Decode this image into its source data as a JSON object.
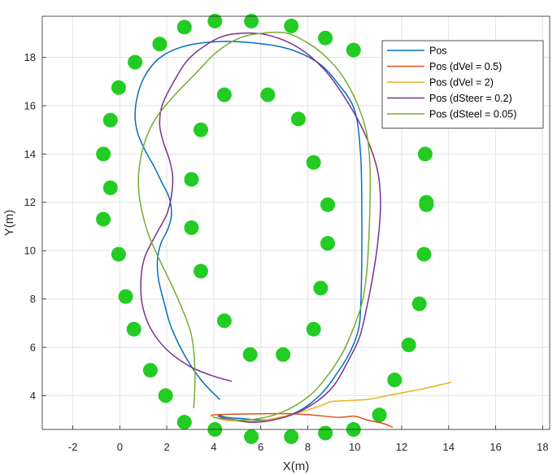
{
  "chart_data": {
    "type": "line",
    "xlabel": "X(m)",
    "ylabel": "Y(m)",
    "xlim": [
      -3.3,
      18.3
    ],
    "ylim": [
      2.6,
      19.7
    ],
    "xticks": [
      -2,
      0,
      2,
      4,
      6,
      8,
      10,
      12,
      14,
      16,
      18
    ],
    "yticks": [
      4,
      6,
      8,
      10,
      12,
      14,
      16,
      18
    ],
    "grid": true,
    "legend_position": "top-right",
    "cones": {
      "color": "#22cc22",
      "x": [
        2.75,
        4.05,
        5.6,
        7.3,
        8.75,
        9.95,
        1.7,
        0.65,
        -0.05,
        -0.4,
        -0.7,
        -0.4,
        -0.7,
        -0.05,
        0.25,
        0.6,
        1.3,
        1.95,
        2.75,
        4.05,
        5.6,
        7.3,
        8.75,
        9.95,
        11.05,
        11.7,
        12.3,
        12.75,
        12.95,
        13.05,
        13.0,
        13.05,
        4.45,
        6.3,
        7.6,
        8.25,
        8.85,
        8.85,
        8.55,
        8.25,
        6.95,
        5.55,
        4.45,
        3.45,
        3.05,
        3.05,
        3.45
      ],
      "y": [
        19.25,
        19.5,
        19.5,
        19.3,
        18.8,
        18.3,
        18.55,
        17.8,
        16.75,
        15.4,
        14.0,
        12.6,
        11.3,
        9.85,
        8.1,
        6.75,
        5.05,
        4.0,
        2.9,
        2.6,
        2.3,
        2.3,
        2.45,
        2.6,
        3.2,
        4.65,
        6.1,
        7.8,
        9.85,
        11.9,
        14.0,
        12.0,
        16.45,
        16.45,
        15.45,
        13.65,
        11.9,
        10.3,
        8.45,
        6.75,
        5.7,
        5.7,
        7.1,
        9.15,
        10.95,
        12.95,
        15.0
      ]
    },
    "series": [
      {
        "name": "Pos",
        "color": "#0072BD",
        "x": [
          4.25,
          3.5,
          2.8,
          2.2,
          1.9,
          1.65,
          1.6,
          1.75,
          2.05,
          2.2,
          2.1,
          1.8,
          1.45,
          1.05,
          0.75,
          0.65,
          0.75,
          1.05,
          1.6,
          2.4,
          3.5,
          5.0,
          7.0,
          8.4,
          9.3,
          10.0,
          10.25,
          10.3,
          10.3,
          10.25,
          10.15,
          9.8,
          9.3,
          8.6,
          7.6,
          6.3,
          5.2,
          4.55,
          4.2
        ],
        "y": [
          3.85,
          4.6,
          5.6,
          6.8,
          7.8,
          8.8,
          9.6,
          10.3,
          10.9,
          11.5,
          12.2,
          12.8,
          13.5,
          14.2,
          14.9,
          15.6,
          16.4,
          17.2,
          17.9,
          18.35,
          18.6,
          18.65,
          18.4,
          17.8,
          16.9,
          15.8,
          14.0,
          12.0,
          9.5,
          7.6,
          6.7,
          5.8,
          5.0,
          4.1,
          3.35,
          3.0,
          3.05,
          3.1,
          3.2
        ]
      },
      {
        "name": "Pos (dVel = 0.5)",
        "color": "#D95319",
        "x": [
          3.9,
          4.8,
          6.0,
          7.2,
          8.2,
          9.3,
          10.0,
          10.5,
          11.2,
          11.6
        ],
        "y": [
          3.2,
          3.23,
          3.25,
          3.25,
          3.2,
          3.1,
          3.15,
          3.0,
          2.85,
          2.7
        ]
      },
      {
        "name": "Pos (dVel = 2)",
        "color": "#EDB120",
        "x": [
          3.9,
          4.4,
          5.0,
          6.0,
          7.0,
          7.8,
          8.6,
          9.0,
          9.8,
          10.6,
          11.4,
          12.2,
          13.0,
          14.1
        ],
        "y": [
          3.15,
          3.0,
          2.95,
          2.95,
          3.15,
          3.35,
          3.6,
          3.75,
          3.8,
          3.85,
          4.0,
          4.15,
          4.3,
          4.55
        ]
      },
      {
        "name": "Pos (dSteer = 0.2)",
        "color": "#7E2F8E",
        "x": [
          4.75,
          4.0,
          3.0,
          2.0,
          1.3,
          0.95,
          0.9,
          1.05,
          1.5,
          2.0,
          2.2,
          2.25,
          2.1,
          1.85,
          1.7,
          1.8,
          2.3,
          3.0,
          4.2,
          5.3,
          6.4,
          7.6,
          8.7,
          9.6,
          10.4,
          10.95,
          11.1,
          11.0,
          10.8,
          10.5,
          10.2,
          9.7,
          9.1,
          8.3,
          7.3,
          6.3,
          5.5,
          4.9,
          4.5,
          4.2
        ],
        "y": [
          4.6,
          4.8,
          5.2,
          5.9,
          6.8,
          7.8,
          8.8,
          9.7,
          10.6,
          11.5,
          12.3,
          13.1,
          13.8,
          14.5,
          15.2,
          16.0,
          17.0,
          18.0,
          18.8,
          19.0,
          18.9,
          18.4,
          17.5,
          16.3,
          14.9,
          13.4,
          12.0,
          10.5,
          9.1,
          7.6,
          6.4,
          5.4,
          4.4,
          3.7,
          3.2,
          2.95,
          2.9,
          3.0,
          3.05,
          3.15
        ]
      },
      {
        "name": "Pos (dSteel = 0.05)",
        "color": "#77AC30",
        "x": [
          3.15,
          3.2,
          3.05,
          2.65,
          2.2,
          1.7,
          1.25,
          0.95,
          0.8,
          0.85,
          1.1,
          1.55,
          2.3,
          3.2,
          4.1,
          5.1,
          6.1,
          7.1,
          8.0,
          8.8,
          9.5,
          10.1,
          10.5,
          10.65,
          10.65,
          10.6,
          10.5,
          10.3,
          9.95,
          9.5,
          8.9,
          8.2,
          7.3,
          6.4,
          5.5,
          4.8,
          4.3,
          4.0
        ],
        "y": [
          3.5,
          5.0,
          6.5,
          7.6,
          8.6,
          9.6,
          10.6,
          11.6,
          12.6,
          13.6,
          14.6,
          15.5,
          16.4,
          17.3,
          18.2,
          18.8,
          19.0,
          19.0,
          18.6,
          18.0,
          17.2,
          16.1,
          14.9,
          13.5,
          12.0,
          10.5,
          9.0,
          7.8,
          6.8,
          5.8,
          4.9,
          4.1,
          3.5,
          3.15,
          3.0,
          3.0,
          3.05,
          3.1
        ]
      }
    ]
  }
}
